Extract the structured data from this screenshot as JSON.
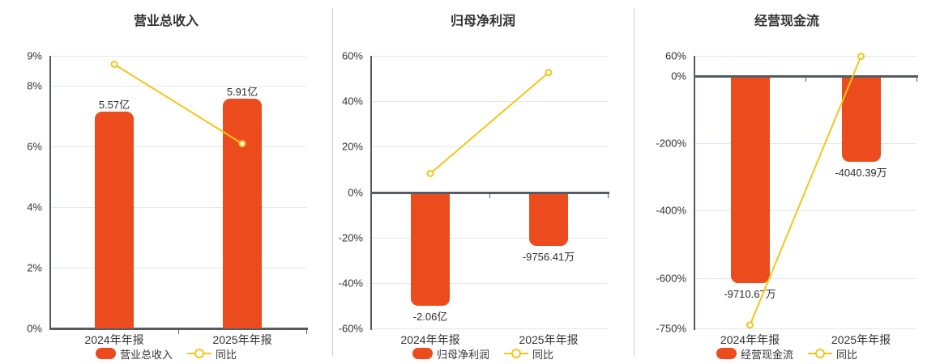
{
  "colors": {
    "bar": "#ec4c1d",
    "line": "#f3c51a",
    "marker_fill": "#ffffff",
    "grid": "#e2e6ee",
    "axis": "#565b63",
    "text": "#333333",
    "divider": "#cccccc",
    "background": "#ffffff"
  },
  "chart_data": [
    {
      "type": "bar+line",
      "title": "营业总收入",
      "categories": [
        "2024年年报",
        "2025年年报"
      ],
      "bars": {
        "name": "营业总收入",
        "unit": "亿",
        "values": [
          5.57,
          5.91
        ],
        "labels": [
          "5.57亿",
          "5.91亿"
        ],
        "label_position": "above",
        "pct_per_unit": 1.285
      },
      "line": {
        "name": "同比",
        "values_pct": [
          8.72,
          6.1
        ]
      },
      "y_axis": {
        "min": 0,
        "max": 9,
        "ticks": [
          {
            "v": 9,
            "label": "9%"
          },
          {
            "v": 8,
            "label": "8%"
          },
          {
            "v": 6,
            "label": "6%"
          },
          {
            "v": 4,
            "label": "4%"
          },
          {
            "v": 2,
            "label": "2%"
          },
          {
            "v": 0,
            "label": "0%"
          }
        ]
      }
    },
    {
      "type": "bar+line",
      "title": "归母净利润",
      "categories": [
        "2024年年报",
        "2025年年报"
      ],
      "bars": {
        "name": "归母净利润",
        "unit": "亿",
        "values": [
          -2.06,
          -0.975641
        ],
        "labels": [
          "-2.06亿",
          "-9756.41万"
        ],
        "label_position": "below",
        "pct_per_unit": 24.27
      },
      "line": {
        "name": "同比",
        "values_pct": [
          8.2,
          52.64
        ]
      },
      "y_axis": {
        "min": -60,
        "max": 60,
        "ticks": [
          {
            "v": 60,
            "label": "60%"
          },
          {
            "v": 40,
            "label": "40%"
          },
          {
            "v": 20,
            "label": "20%"
          },
          {
            "v": 0,
            "label": "0%"
          },
          {
            "v": -20,
            "label": "-20%"
          },
          {
            "v": -40,
            "label": "-40%"
          },
          {
            "v": -60,
            "label": "-60%"
          }
        ]
      }
    },
    {
      "type": "bar+line",
      "title": "经营现金流",
      "categories": [
        "2024年年报",
        "2025年年报"
      ],
      "bars": {
        "name": "经营现金流",
        "unit": "万",
        "values": [
          -9710.67,
          -4040.39
        ],
        "labels": [
          "-9710.67万",
          "-4040.39万"
        ],
        "label_position": "below",
        "pct_per_unit": 0.0633
      },
      "line": {
        "name": "同比",
        "values_pct": [
          -740,
          58.39
        ]
      },
      "y_axis": {
        "min": -750,
        "max": 60,
        "ticks": [
          {
            "v": 60,
            "label": "60%"
          },
          {
            "v": 0,
            "label": "0%"
          },
          {
            "v": -200,
            "label": "-200%"
          },
          {
            "v": -400,
            "label": "-400%"
          },
          {
            "v": -600,
            "label": "-600%"
          },
          {
            "v": -750,
            "label": "-750%"
          }
        ]
      }
    }
  ]
}
